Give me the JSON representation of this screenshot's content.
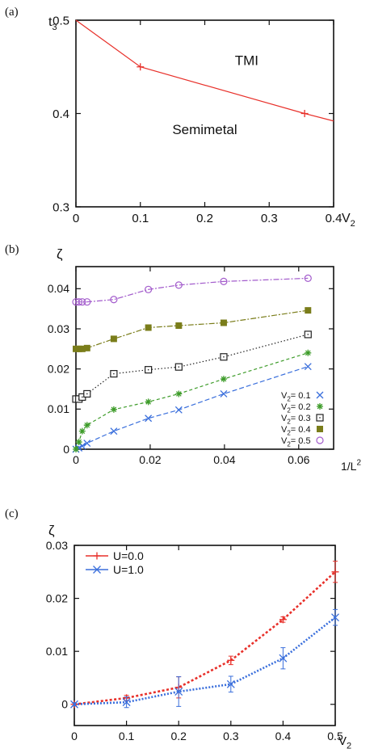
{
  "chart_data": [
    {
      "panel_label": "(a)",
      "type": "line",
      "ylabel": "t",
      "ylabel_sub": "3",
      "xlabel": "V",
      "xlabel_sub": "2",
      "xlim": [
        0,
        0.4
      ],
      "ylim": [
        0.3,
        0.5
      ],
      "x_ticks": [
        {
          "v": 0,
          "label": "0"
        },
        {
          "v": 0.1,
          "label": "0.1"
        },
        {
          "v": 0.2,
          "label": "0.2"
        },
        {
          "v": 0.3,
          "label": "0.3"
        },
        {
          "v": 0.4,
          "label": "0.4"
        }
      ],
      "y_ticks": [
        {
          "v": 0.3,
          "label": "0.3"
        },
        {
          "v": 0.4,
          "label": "0.4"
        },
        {
          "v": 0.5,
          "label": "0.5"
        }
      ],
      "grid": false,
      "series": [
        {
          "color": "#e8302a",
          "marker": "plus",
          "marker_x": [
            0.1,
            0.355
          ],
          "x": [
            0,
            0.1,
            0.355,
            0.4
          ],
          "y": [
            0.5,
            0.45,
            0.4,
            0.392
          ]
        }
      ],
      "annotations": [
        {
          "text": "TMI",
          "x": 0.265,
          "y": 0.452
        },
        {
          "text": "Semimetal",
          "x": 0.2,
          "y": 0.378
        }
      ]
    },
    {
      "panel_label": "(b)",
      "type": "line",
      "ylabel": "ζ",
      "xlabel": "1/L",
      "xlabel_sup": "2",
      "xlim": [
        0,
        0.0694
      ],
      "ylim": [
        0,
        0.0455
      ],
      "x_ticks": [
        {
          "v": 0,
          "label": "0"
        },
        {
          "v": 0.02,
          "label": "0.02"
        },
        {
          "v": 0.04,
          "label": "0.04"
        },
        {
          "v": 0.06,
          "label": "0.06"
        }
      ],
      "y_ticks": [
        {
          "v": 0,
          "label": "0"
        },
        {
          "v": 0.01,
          "label": "0.01"
        },
        {
          "v": 0.02,
          "label": "0.02"
        },
        {
          "v": 0.03,
          "label": "0.03"
        },
        {
          "v": 0.04,
          "label": "0.04"
        }
      ],
      "grid": false,
      "legend_position": "bottom-right",
      "x": [
        0.0,
        0.0008,
        0.0017,
        0.003,
        0.0102,
        0.0195,
        0.0277,
        0.0398,
        0.0625
      ],
      "series": [
        {
          "name": "V",
          "name_sub": "2",
          "name_value": "= 0.1",
          "color": "#3a6fdc",
          "marker": "x",
          "dash": "6,3",
          "values": [
            0.0,
            0.0003,
            0.0008,
            0.0015,
            0.0045,
            0.0077,
            0.0098,
            0.0138,
            0.0206
          ]
        },
        {
          "name": "V",
          "name_sub": "2",
          "name_value": "= 0.2",
          "color": "#3e9c2a",
          "marker": "star",
          "dash": "4,3",
          "values": [
            0.0,
            0.0018,
            0.0045,
            0.006,
            0.0099,
            0.0118,
            0.0138,
            0.0175,
            0.024
          ]
        },
        {
          "name": "V",
          "name_sub": "2",
          "name_value": "= 0.3",
          "color": "#222222",
          "marker": "open-square",
          "dash": "1.5,2.5",
          "values": [
            0.0125,
            0.0125,
            0.013,
            0.0138,
            0.0188,
            0.0198,
            0.0205,
            0.023,
            0.0286
          ]
        },
        {
          "name": "V",
          "name_sub": "2",
          "name_value": "= 0.4",
          "color": "#7a7d1a",
          "marker": "filled-square",
          "dash": "7,2,2,2",
          "values": [
            0.025,
            0.025,
            0.025,
            0.0252,
            0.0275,
            0.0303,
            0.0308,
            0.0315,
            0.0346
          ]
        },
        {
          "name": "V",
          "name_sub": "2",
          "name_value": "= 0.5",
          "color": "#a35ccc",
          "marker": "circle",
          "dash": "7,2,2,2",
          "values": [
            0.0367,
            0.0367,
            0.0367,
            0.0367,
            0.0373,
            0.0398,
            0.0409,
            0.0418,
            0.0426
          ]
        }
      ]
    },
    {
      "panel_label": "(c)",
      "type": "line",
      "ylabel": "ζ",
      "xlabel": "V",
      "xlabel_sub": "2",
      "xlim": [
        0,
        0.5
      ],
      "ylim": [
        -0.004,
        0.03
      ],
      "x_ticks": [
        {
          "v": 0,
          "label": "0"
        },
        {
          "v": 0.1,
          "label": "0.1"
        },
        {
          "v": 0.2,
          "label": "0.2"
        },
        {
          "v": 0.3,
          "label": "0.3"
        },
        {
          "v": 0.4,
          "label": "0.4"
        },
        {
          "v": 0.5,
          "label": "0.5"
        }
      ],
      "y_ticks": [
        {
          "v": 0,
          "label": "0"
        },
        {
          "v": 0.01,
          "label": "0.01"
        },
        {
          "v": 0.02,
          "label": "0.02"
        },
        {
          "v": 0.03,
          "label": "0.03"
        }
      ],
      "grid": false,
      "legend_position": "top-left",
      "x": [
        0,
        0.1,
        0.2,
        0.3,
        0.4,
        0.5
      ],
      "series": [
        {
          "name": "U=0.0",
          "color": "#e8302a",
          "marker": "plus",
          "dash": "3,2.5",
          "values": [
            0.0,
            0.0012,
            0.0032,
            0.0083,
            0.016,
            0.025
          ],
          "errors": [
            0.0003,
            0.0005,
            0.002,
            0.0008,
            0.0005,
            0.002
          ]
        },
        {
          "name": "U=1.0",
          "color": "#3a6fdc",
          "marker": "x",
          "dash": "2,2",
          "values": [
            0.0,
            0.0004,
            0.0024,
            0.0038,
            0.0087,
            0.0164
          ],
          "errors": [
            0.0003,
            0.001,
            0.0028,
            0.0015,
            0.002,
            0.0015
          ]
        }
      ]
    }
  ]
}
